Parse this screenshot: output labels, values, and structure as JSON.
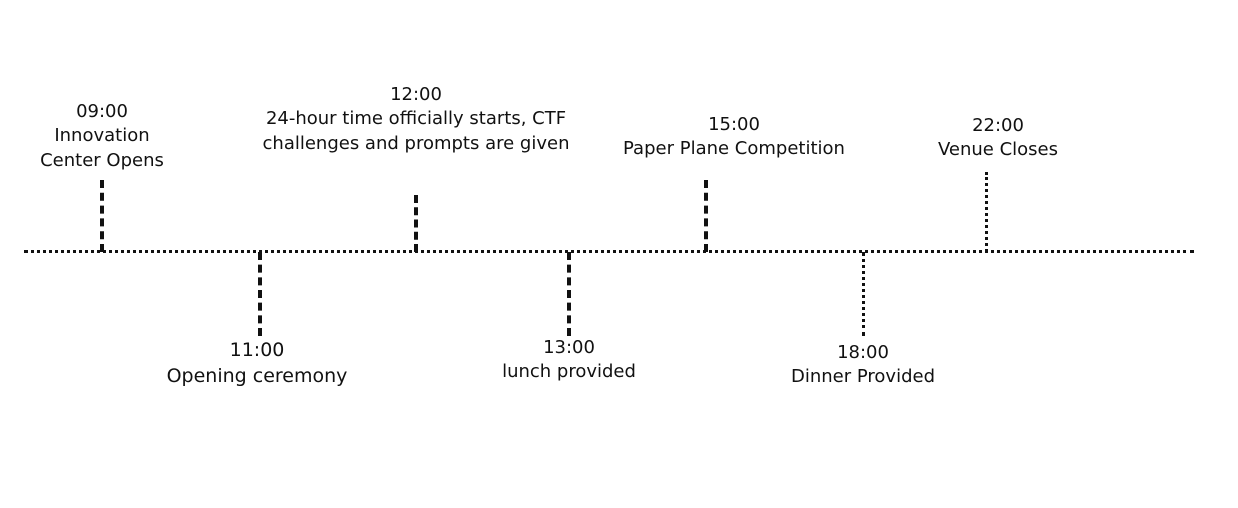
{
  "timeline": {
    "events": [
      {
        "time": "09:00",
        "lines": [
          "Innovation",
          "Center Opens"
        ]
      },
      {
        "time": "11:00",
        "lines": [
          "Opening ceremony"
        ]
      },
      {
        "time": "12:00",
        "lines": [
          "24-hour time officially starts, CTF",
          "challenges and prompts are given"
        ]
      },
      {
        "time": "13:00",
        "lines": [
          "lunch provided"
        ]
      },
      {
        "time": "15:00",
        "lines": [
          "Paper Plane Competition"
        ]
      },
      {
        "time": "18:00",
        "lines": [
          "Dinner Provided"
        ]
      },
      {
        "time": "22:00",
        "lines": [
          "Venue Closes"
        ]
      }
    ]
  }
}
